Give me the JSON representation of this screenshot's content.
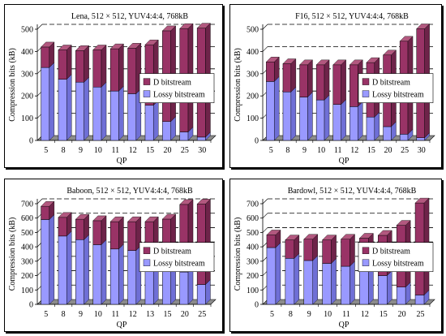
{
  "colors": {
    "d_front": "#993366",
    "d_top": "#b2587f",
    "d_side": "#6e2349",
    "lossy_front": "#9999ff",
    "lossy_top": "#b8b8ff",
    "lossy_side": "#6f6fd6",
    "floor": "#8c8c8c",
    "grid": "#000000"
  },
  "chart_data": [
    {
      "type": "bar",
      "stacked": true,
      "title": "Lena, 512 × 512, YUV4:4:4, 768kB",
      "xlabel": "QP",
      "ylabel": "Compression bits (kB)",
      "ylim": [
        0,
        500
      ],
      "yticks": [
        "0",
        "100",
        "200",
        "300",
        "400",
        "500"
      ],
      "grid": true,
      "legend_position": "inside-right",
      "categories": [
        "5",
        "8",
        "9",
        "10",
        "11",
        "12",
        "15",
        "20",
        "25",
        "30"
      ],
      "series": [
        {
          "name": "D bitstream",
          "values": [
            92,
            132,
            142,
            167,
            190,
            205,
            272,
            408,
            465,
            490
          ]
        },
        {
          "name": "Lossy bitstream",
          "values": [
            328,
            275,
            262,
            240,
            222,
            210,
            158,
            85,
            38,
            15
          ]
        }
      ]
    },
    {
      "type": "bar",
      "stacked": true,
      "title": "F16, 512 × 512, YUV4:4:4, 768kB",
      "xlabel": "QP",
      "ylabel": "Compression bits (kB)",
      "ylim": [
        0,
        500
      ],
      "yticks": [
        "0",
        "100",
        "200",
        "300",
        "400",
        "500"
      ],
      "grid": true,
      "legend_position": "inside-right",
      "categories": [
        "5",
        "8",
        "9",
        "10",
        "11",
        "12",
        "15",
        "20",
        "25",
        "30"
      ],
      "series": [
        {
          "name": "D bitstream",
          "values": [
            88,
            127,
            145,
            158,
            178,
            188,
            245,
            322,
            418,
            490
          ]
        },
        {
          "name": "Lossy bitstream",
          "values": [
            265,
            218,
            195,
            182,
            162,
            152,
            105,
            62,
            28,
            12
          ]
        }
      ]
    },
    {
      "type": "bar",
      "stacked": true,
      "title": "Baboon, 512 × 512, YUV4:4:4, 768kB",
      "xlabel": "QP",
      "ylabel": "Compression bits (kB)",
      "ylim": [
        0,
        700
      ],
      "yticks": [
        "0",
        "100",
        "200",
        "300",
        "400",
        "500",
        "600",
        "700"
      ],
      "grid": true,
      "legend_position": "inside-right",
      "categories": [
        "5",
        "8",
        "9",
        "10",
        "11",
        "12",
        "13",
        "15",
        "20",
        "25"
      ],
      "series": [
        {
          "name": "D bitstream",
          "values": [
            92,
            130,
            142,
            167,
            190,
            200,
            225,
            255,
            470,
            560
          ]
        },
        {
          "name": "Lossy bitstream",
          "values": [
            590,
            475,
            450,
            415,
            385,
            375,
            350,
            338,
            225,
            138
          ]
        }
      ]
    },
    {
      "type": "bar",
      "stacked": true,
      "title": "Bardowl, 512 × 512, YUV4:4:4, 768kB",
      "xlabel": "QP",
      "ylabel": "Compression bits (kB)",
      "ylim": [
        0,
        700
      ],
      "yticks": [
        "0",
        "100",
        "200",
        "300",
        "400",
        "500",
        "600",
        "700"
      ],
      "grid": true,
      "legend_position": "inside-right",
      "categories": [
        "5",
        "8",
        "9",
        "10",
        "11",
        "12",
        "15",
        "20",
        "25"
      ],
      "series": [
        {
          "name": "D bitstream",
          "values": [
            88,
            128,
            148,
            163,
            188,
            225,
            280,
            430,
            640
          ]
        },
        {
          "name": "Lossy bitstream",
          "values": [
            395,
            320,
            305,
            285,
            265,
            235,
            200,
            120,
            65
          ]
        }
      ]
    }
  ]
}
